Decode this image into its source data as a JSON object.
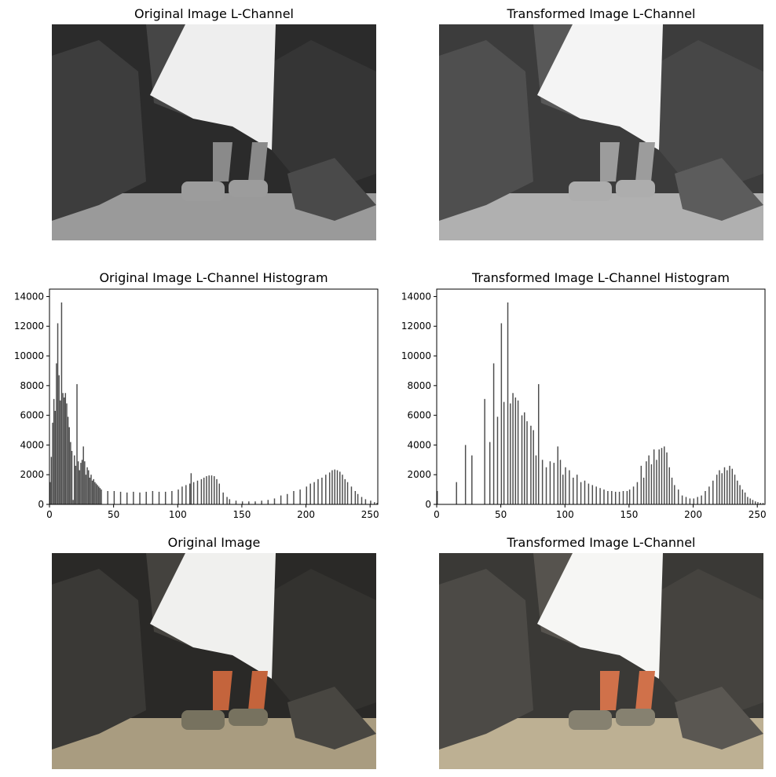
{
  "panels": {
    "top_left_title": "Original Image L-Channel",
    "top_right_title": "Transformed Image L-Channel",
    "bottom_left_title": "Original Image",
    "bottom_right_title": "Transformed Image L-Channel"
  },
  "colors": {
    "bar": "#4d4d4d",
    "rock_dark": "#2b2b2b",
    "rock_mid": "#3d3d3d",
    "sand_gray": "#9a9a9a",
    "sand_color": "#b3a68a",
    "dress": "#f2f2f2",
    "sock": "#c4643c",
    "shoe": "#77725f"
  },
  "chart_data": [
    {
      "type": "bar",
      "title": "Original Image L-Channel Histogram",
      "xlim": [
        0,
        255
      ],
      "ylim": [
        0,
        14500
      ],
      "xticks": [
        0,
        50,
        100,
        150,
        200,
        250
      ],
      "yticks": [
        0,
        2000,
        4000,
        6000,
        8000,
        10000,
        12000,
        14000
      ],
      "x": [
        0,
        1,
        2,
        3,
        4,
        5,
        6,
        7,
        8,
        9,
        10,
        11,
        12,
        13,
        14,
        15,
        16,
        17,
        18,
        19,
        20,
        21,
        22,
        23,
        24,
        25,
        26,
        27,
        28,
        29,
        30,
        31,
        32,
        33,
        34,
        35,
        36,
        37,
        38,
        39,
        40,
        45,
        50,
        55,
        60,
        65,
        70,
        75,
        80,
        85,
        90,
        95,
        100,
        103,
        106,
        109,
        110,
        112,
        115,
        118,
        120,
        122,
        124,
        126,
        128,
        130,
        132,
        135,
        138,
        140,
        145,
        150,
        155,
        160,
        165,
        170,
        175,
        180,
        185,
        190,
        195,
        200,
        203,
        206,
        209,
        212,
        215,
        218,
        220,
        222,
        224,
        226,
        228,
        230,
        232,
        235,
        238,
        240,
        243,
        246,
        250,
        253,
        255
      ],
      "values": [
        1500,
        3200,
        5500,
        7100,
        6300,
        9500,
        12200,
        8700,
        7000,
        13600,
        7500,
        7200,
        7500,
        6800,
        5900,
        5200,
        4200,
        3600,
        300,
        3300,
        2600,
        8100,
        2900,
        2300,
        2800,
        3000,
        3900,
        2900,
        2000,
        2500,
        2300,
        1800,
        2000,
        1600,
        1700,
        1500,
        1400,
        1300,
        1200,
        1100,
        1000,
        900,
        900,
        850,
        800,
        850,
        800,
        850,
        900,
        850,
        850,
        900,
        1000,
        1200,
        1300,
        1400,
        2100,
        1500,
        1600,
        1700,
        1800,
        1900,
        1950,
        1950,
        1900,
        1700,
        1400,
        800,
        500,
        350,
        250,
        200,
        200,
        200,
        250,
        300,
        400,
        600,
        700,
        900,
        1000,
        1200,
        1400,
        1500,
        1700,
        1800,
        2000,
        2150,
        2300,
        2350,
        2300,
        2200,
        2000,
        1700,
        1500,
        1200,
        900,
        700,
        500,
        350,
        250,
        150,
        100
      ]
    },
    {
      "type": "bar",
      "title": "Transformed Image L-Channel Histogram",
      "xlim": [
        0,
        255
      ],
      "ylim": [
        0,
        14500
      ],
      "xticks": [
        0,
        50,
        100,
        150,
        200,
        250
      ],
      "yticks": [
        0,
        2000,
        4000,
        6000,
        8000,
        10000,
        12000,
        14000
      ],
      "x": [
        0,
        15,
        22,
        27,
        37,
        41,
        44,
        47,
        50,
        52,
        55,
        57,
        59,
        61,
        63,
        66,
        68,
        70,
        73,
        75,
        77,
        79,
        82,
        85,
        88,
        91,
        94,
        96,
        98,
        100,
        103,
        106,
        109,
        112,
        115,
        118,
        121,
        124,
        127,
        130,
        133,
        136,
        139,
        142,
        145,
        148,
        150,
        153,
        156,
        159,
        161,
        163,
        165,
        167,
        169,
        171,
        173,
        175,
        177,
        179,
        181,
        183,
        185,
        188,
        191,
        194,
        197,
        200,
        203,
        206,
        209,
        212,
        215,
        218,
        220,
        222,
        224,
        226,
        228,
        230,
        232,
        234,
        236,
        238,
        240,
        242,
        244,
        246,
        248,
        250,
        252,
        254
      ],
      "values": [
        900,
        1500,
        4000,
        3300,
        7100,
        4200,
        9500,
        5900,
        12200,
        6900,
        13600,
        6800,
        7500,
        7200,
        7000,
        6000,
        6200,
        5600,
        5300,
        5000,
        3300,
        8100,
        3000,
        2500,
        2900,
        2800,
        3900,
        3000,
        2000,
        2500,
        2300,
        1800,
        2000,
        1500,
        1600,
        1400,
        1300,
        1200,
        1100,
        1000,
        900,
        900,
        850,
        850,
        900,
        900,
        1000,
        1200,
        1500,
        2600,
        1800,
        2900,
        3300,
        2700,
        3700,
        3000,
        3700,
        3800,
        3900,
        3500,
        2500,
        1800,
        1300,
        1000,
        600,
        500,
        400,
        400,
        500,
        600,
        900,
        1200,
        1600,
        2000,
        2300,
        2100,
        2500,
        2300,
        2600,
        2400,
        2000,
        1600,
        1300,
        1000,
        800,
        500,
        400,
        300,
        200,
        150,
        100,
        100
      ]
    }
  ]
}
